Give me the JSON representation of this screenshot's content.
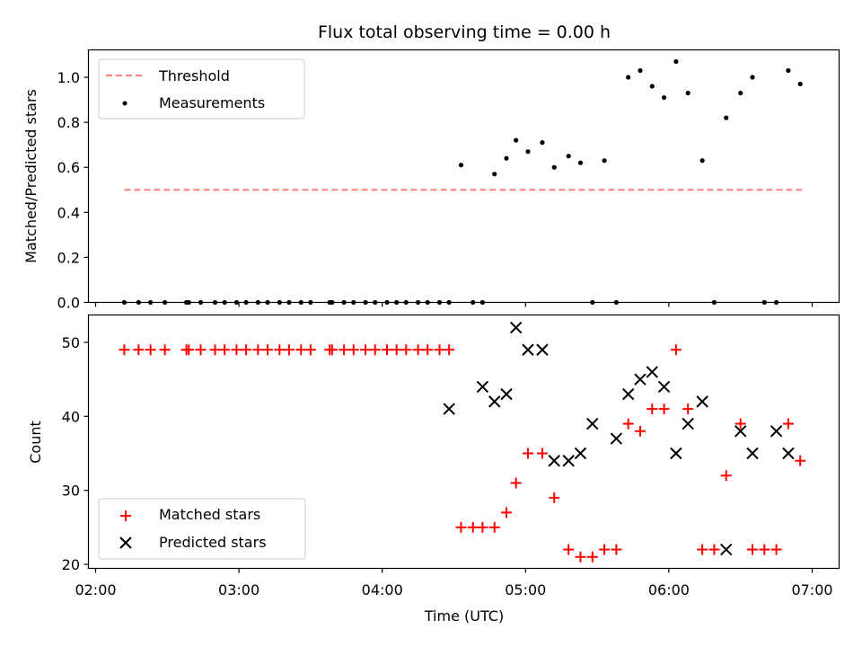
{
  "chart_data": [
    {
      "type": "scatter",
      "title": "Flux total observing time = 0.00 h",
      "xlabel": "",
      "ylabel": "Matched/Predicted stars",
      "ylim": [
        0,
        1.12
      ],
      "xlim": [
        "02:00",
        "07:00"
      ],
      "yticks": [
        "0.0",
        "0.2",
        "0.4",
        "0.6",
        "0.8",
        "1.0"
      ],
      "legend_position": "top-left",
      "threshold": {
        "name": "Threshold",
        "value": 0.5,
        "x_start": "02:12",
        "x_end": "06:57",
        "color": "#ff7f7f",
        "style": "dashed"
      },
      "series": [
        {
          "name": "Measurements",
          "color": "#000000",
          "marker": "dot",
          "x": [
            "02:12",
            "02:18",
            "02:23",
            "02:29",
            "02:38",
            "02:39",
            "02:44",
            "02:50",
            "02:54",
            "02:59",
            "03:03",
            "03:08",
            "03:12",
            "03:17",
            "03:21",
            "03:26",
            "03:30",
            "03:38",
            "03:39",
            "03:44",
            "03:48",
            "03:53",
            "03:57",
            "04:02",
            "04:06",
            "04:10",
            "04:15",
            "04:19",
            "04:24",
            "04:28",
            "04:33",
            "04:38",
            "04:42",
            "04:47",
            "04:52",
            "04:56",
            "05:01",
            "05:07",
            "05:12",
            "05:18",
            "05:23",
            "05:28",
            "05:33",
            "05:38",
            "05:43",
            "05:48",
            "05:53",
            "05:58",
            "06:03",
            "06:08",
            "06:14",
            "06:19",
            "06:24",
            "06:30",
            "06:35",
            "06:40",
            "06:45",
            "06:50",
            "06:55"
          ],
          "y": [
            0,
            0,
            0,
            0,
            0,
            0,
            0,
            0,
            0,
            0,
            0,
            0,
            0,
            0,
            0,
            0,
            0,
            0,
            0,
            0,
            0,
            0,
            0,
            0,
            0,
            0,
            0,
            0,
            0,
            0,
            0.61,
            0,
            0,
            0.57,
            0.64,
            0.72,
            0.67,
            0.71,
            0.6,
            0.65,
            0.62,
            0,
            0.63,
            0,
            1.0,
            1.03,
            0.96,
            0.91,
            1.07,
            0.93,
            0.63,
            0,
            0.82,
            0.93,
            1.0,
            0,
            0,
            1.03,
            0.97
          ]
        }
      ]
    },
    {
      "type": "scatter",
      "title": "",
      "xlabel": "Time (UTC)",
      "ylabel": "Count",
      "ylim": [
        19.5,
        53.5
      ],
      "xlim": [
        "02:00",
        "07:00"
      ],
      "xticks": [
        "02:00",
        "03:00",
        "04:00",
        "05:00",
        "06:00",
        "07:00"
      ],
      "yticks": [
        "20",
        "30",
        "40",
        "50"
      ],
      "legend_position": "bottom-left",
      "series": [
        {
          "name": "Matched stars",
          "color": "#ff0000",
          "marker": "plus",
          "x": [
            "02:12",
            "02:18",
            "02:23",
            "02:29",
            "02:38",
            "02:39",
            "02:44",
            "02:50",
            "02:54",
            "02:59",
            "03:03",
            "03:08",
            "03:12",
            "03:17",
            "03:21",
            "03:26",
            "03:30",
            "03:38",
            "03:39",
            "03:44",
            "03:48",
            "03:53",
            "03:57",
            "04:02",
            "04:06",
            "04:10",
            "04:15",
            "04:19",
            "04:24",
            "04:28",
            "04:33",
            "04:38",
            "04:42",
            "04:47",
            "04:52",
            "04:56",
            "05:01",
            "05:07",
            "05:12",
            "05:18",
            "05:23",
            "05:28",
            "05:33",
            "05:38",
            "05:43",
            "05:48",
            "05:53",
            "05:58",
            "06:03",
            "06:08",
            "06:14",
            "06:19",
            "06:24",
            "06:30",
            "06:35",
            "06:40",
            "06:45",
            "06:50",
            "06:55"
          ],
          "y": [
            49,
            49,
            49,
            49,
            49,
            49,
            49,
            49,
            49,
            49,
            49,
            49,
            49,
            49,
            49,
            49,
            49,
            49,
            49,
            49,
            49,
            49,
            49,
            49,
            49,
            49,
            49,
            49,
            49,
            49,
            25,
            25,
            25,
            25,
            27,
            31,
            35,
            35,
            29,
            22,
            21,
            21,
            22,
            22,
            39,
            38,
            41,
            41,
            49,
            41,
            22,
            22,
            32,
            39,
            22,
            22,
            22,
            39,
            34
          ]
        },
        {
          "name": "Predicted stars",
          "color": "#000000",
          "marker": "x",
          "x": [
            "04:28",
            "04:42",
            "04:47",
            "04:52",
            "04:56",
            "05:01",
            "05:07",
            "05:12",
            "05:18",
            "05:23",
            "05:28",
            "05:38",
            "05:43",
            "05:48",
            "05:53",
            "05:58",
            "06:03",
            "06:08",
            "06:14",
            "06:24",
            "06:30",
            "06:35",
            "06:45",
            "06:50"
          ],
          "y": [
            41,
            44,
            42,
            43,
            52,
            49,
            49,
            34,
            34,
            35,
            39,
            37,
            43,
            45,
            46,
            44,
            35,
            39,
            42,
            22,
            38,
            35,
            38,
            35
          ]
        }
      ]
    }
  ]
}
